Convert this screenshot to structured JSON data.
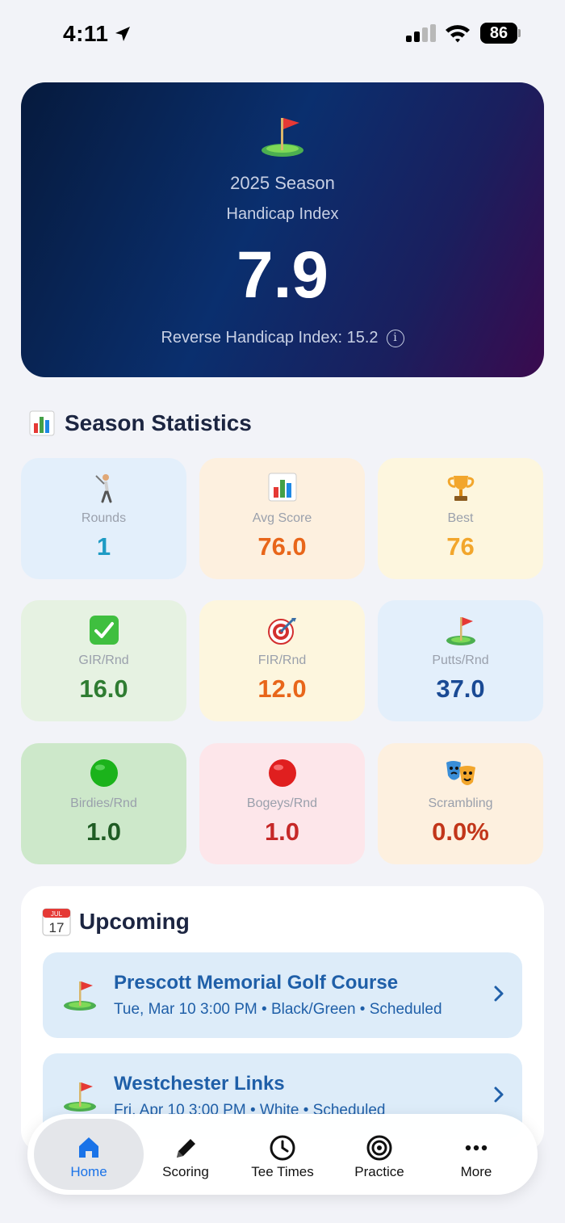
{
  "status_bar": {
    "time": "4:11",
    "battery": "86"
  },
  "hero": {
    "icon": "golf-flag-icon",
    "season": "2025 Season",
    "label": "Handicap Index",
    "value": "7.9",
    "reverse": "Reverse Handicap Index: 15.2",
    "info_glyph": "i"
  },
  "stats_section": {
    "icon": "bar-chart-icon",
    "title": "Season Statistics",
    "items": [
      {
        "icon": "golfer-icon",
        "label": "Rounds",
        "value": "1",
        "bg": "#e3effb",
        "color": "#1e9bc4"
      },
      {
        "icon": "bar-chart-icon",
        "label": "Avg Score",
        "value": "76.0",
        "bg": "#fdf0df",
        "color": "#e8661a"
      },
      {
        "icon": "trophy-icon",
        "label": "Best",
        "value": "76",
        "bg": "#fdf6de",
        "color": "#f2a62c"
      },
      {
        "icon": "check-icon",
        "label": "GIR/Rnd",
        "value": "16.0",
        "bg": "#e6f2e2",
        "color": "#2f7d32"
      },
      {
        "icon": "target-icon",
        "label": "FIR/Rnd",
        "value": "12.0",
        "bg": "#fdf6de",
        "color": "#e8661a"
      },
      {
        "icon": "golf-flag-icon",
        "label": "Putts/Rnd",
        "value": "37.0",
        "bg": "#e3effb",
        "color": "#1a4a94"
      },
      {
        "icon": "green-circle-icon",
        "label": "Birdies/Rnd",
        "value": "1.0",
        "bg": "#cde8ca",
        "color": "#1f5c24"
      },
      {
        "icon": "red-circle-icon",
        "label": "Bogeys/Rnd",
        "value": "1.0",
        "bg": "#fde6ea",
        "color": "#c62828"
      },
      {
        "icon": "theater-masks-icon",
        "label": "Scrambling",
        "value": "0.0%",
        "bg": "#fdf0df",
        "color": "#c2361a"
      }
    ]
  },
  "upcoming": {
    "icon": "calendar-icon",
    "calendar_month": "JUL",
    "calendar_day": "17",
    "title": "Upcoming",
    "events": [
      {
        "name": "Prescott Memorial Golf Course",
        "meta": "Tue, Mar 10 3:00 PM • Black/Green • Scheduled"
      },
      {
        "name": "Westchester Links",
        "meta": "Fri, Apr 10 3:00 PM • White • Scheduled"
      }
    ]
  },
  "tab_bar": {
    "tabs": [
      {
        "label": "Home",
        "icon": "home-icon",
        "active": true
      },
      {
        "label": "Scoring",
        "icon": "pencil-icon"
      },
      {
        "label": "Tee Times",
        "icon": "clock-icon"
      },
      {
        "label": "Practice",
        "icon": "target-icon"
      },
      {
        "label": "More",
        "icon": "more-icon"
      }
    ],
    "accent": "#1a73e8"
  }
}
